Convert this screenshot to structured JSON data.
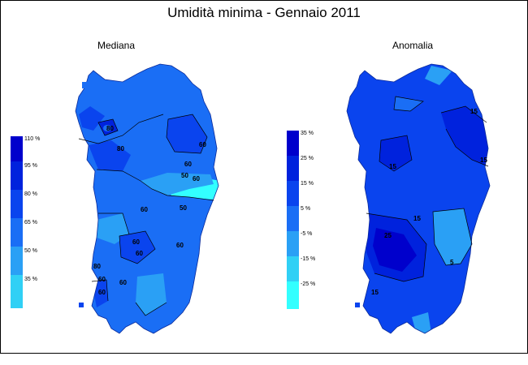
{
  "title": "Umidità minima - Gennaio 2011",
  "panels": {
    "left": {
      "subtitle": "Mediana",
      "legend": {
        "ticks": [
          "110 %",
          "95 %",
          "80 %",
          "65 %",
          "50 %",
          "35 %"
        ],
        "colors": [
          "#0000cc",
          "#0022dd",
          "#0a44ee",
          "#1a6ef5",
          "#2aa0f5",
          "#30d0f5",
          "#33ffff"
        ]
      },
      "contour_labels": [
        "80",
        "80",
        "60",
        "60",
        "60",
        "60",
        "50",
        "50",
        "60",
        "60",
        "60",
        "80",
        "60",
        "60",
        "60"
      ]
    },
    "right": {
      "subtitle": "Anomalia",
      "legend": {
        "ticks": [
          "35 %",
          "25 %",
          "15 %",
          "5 %",
          "-5 %",
          "-15 %",
          "-25 %"
        ],
        "colors": [
          "#0000cc",
          "#0022dd",
          "#0a44ee",
          "#1a6ef5",
          "#2aa0f5",
          "#30d0f5",
          "#33ffff"
        ]
      },
      "contour_labels": [
        "15",
        "15",
        "15",
        "15",
        "25",
        "5",
        "15"
      ]
    }
  }
}
